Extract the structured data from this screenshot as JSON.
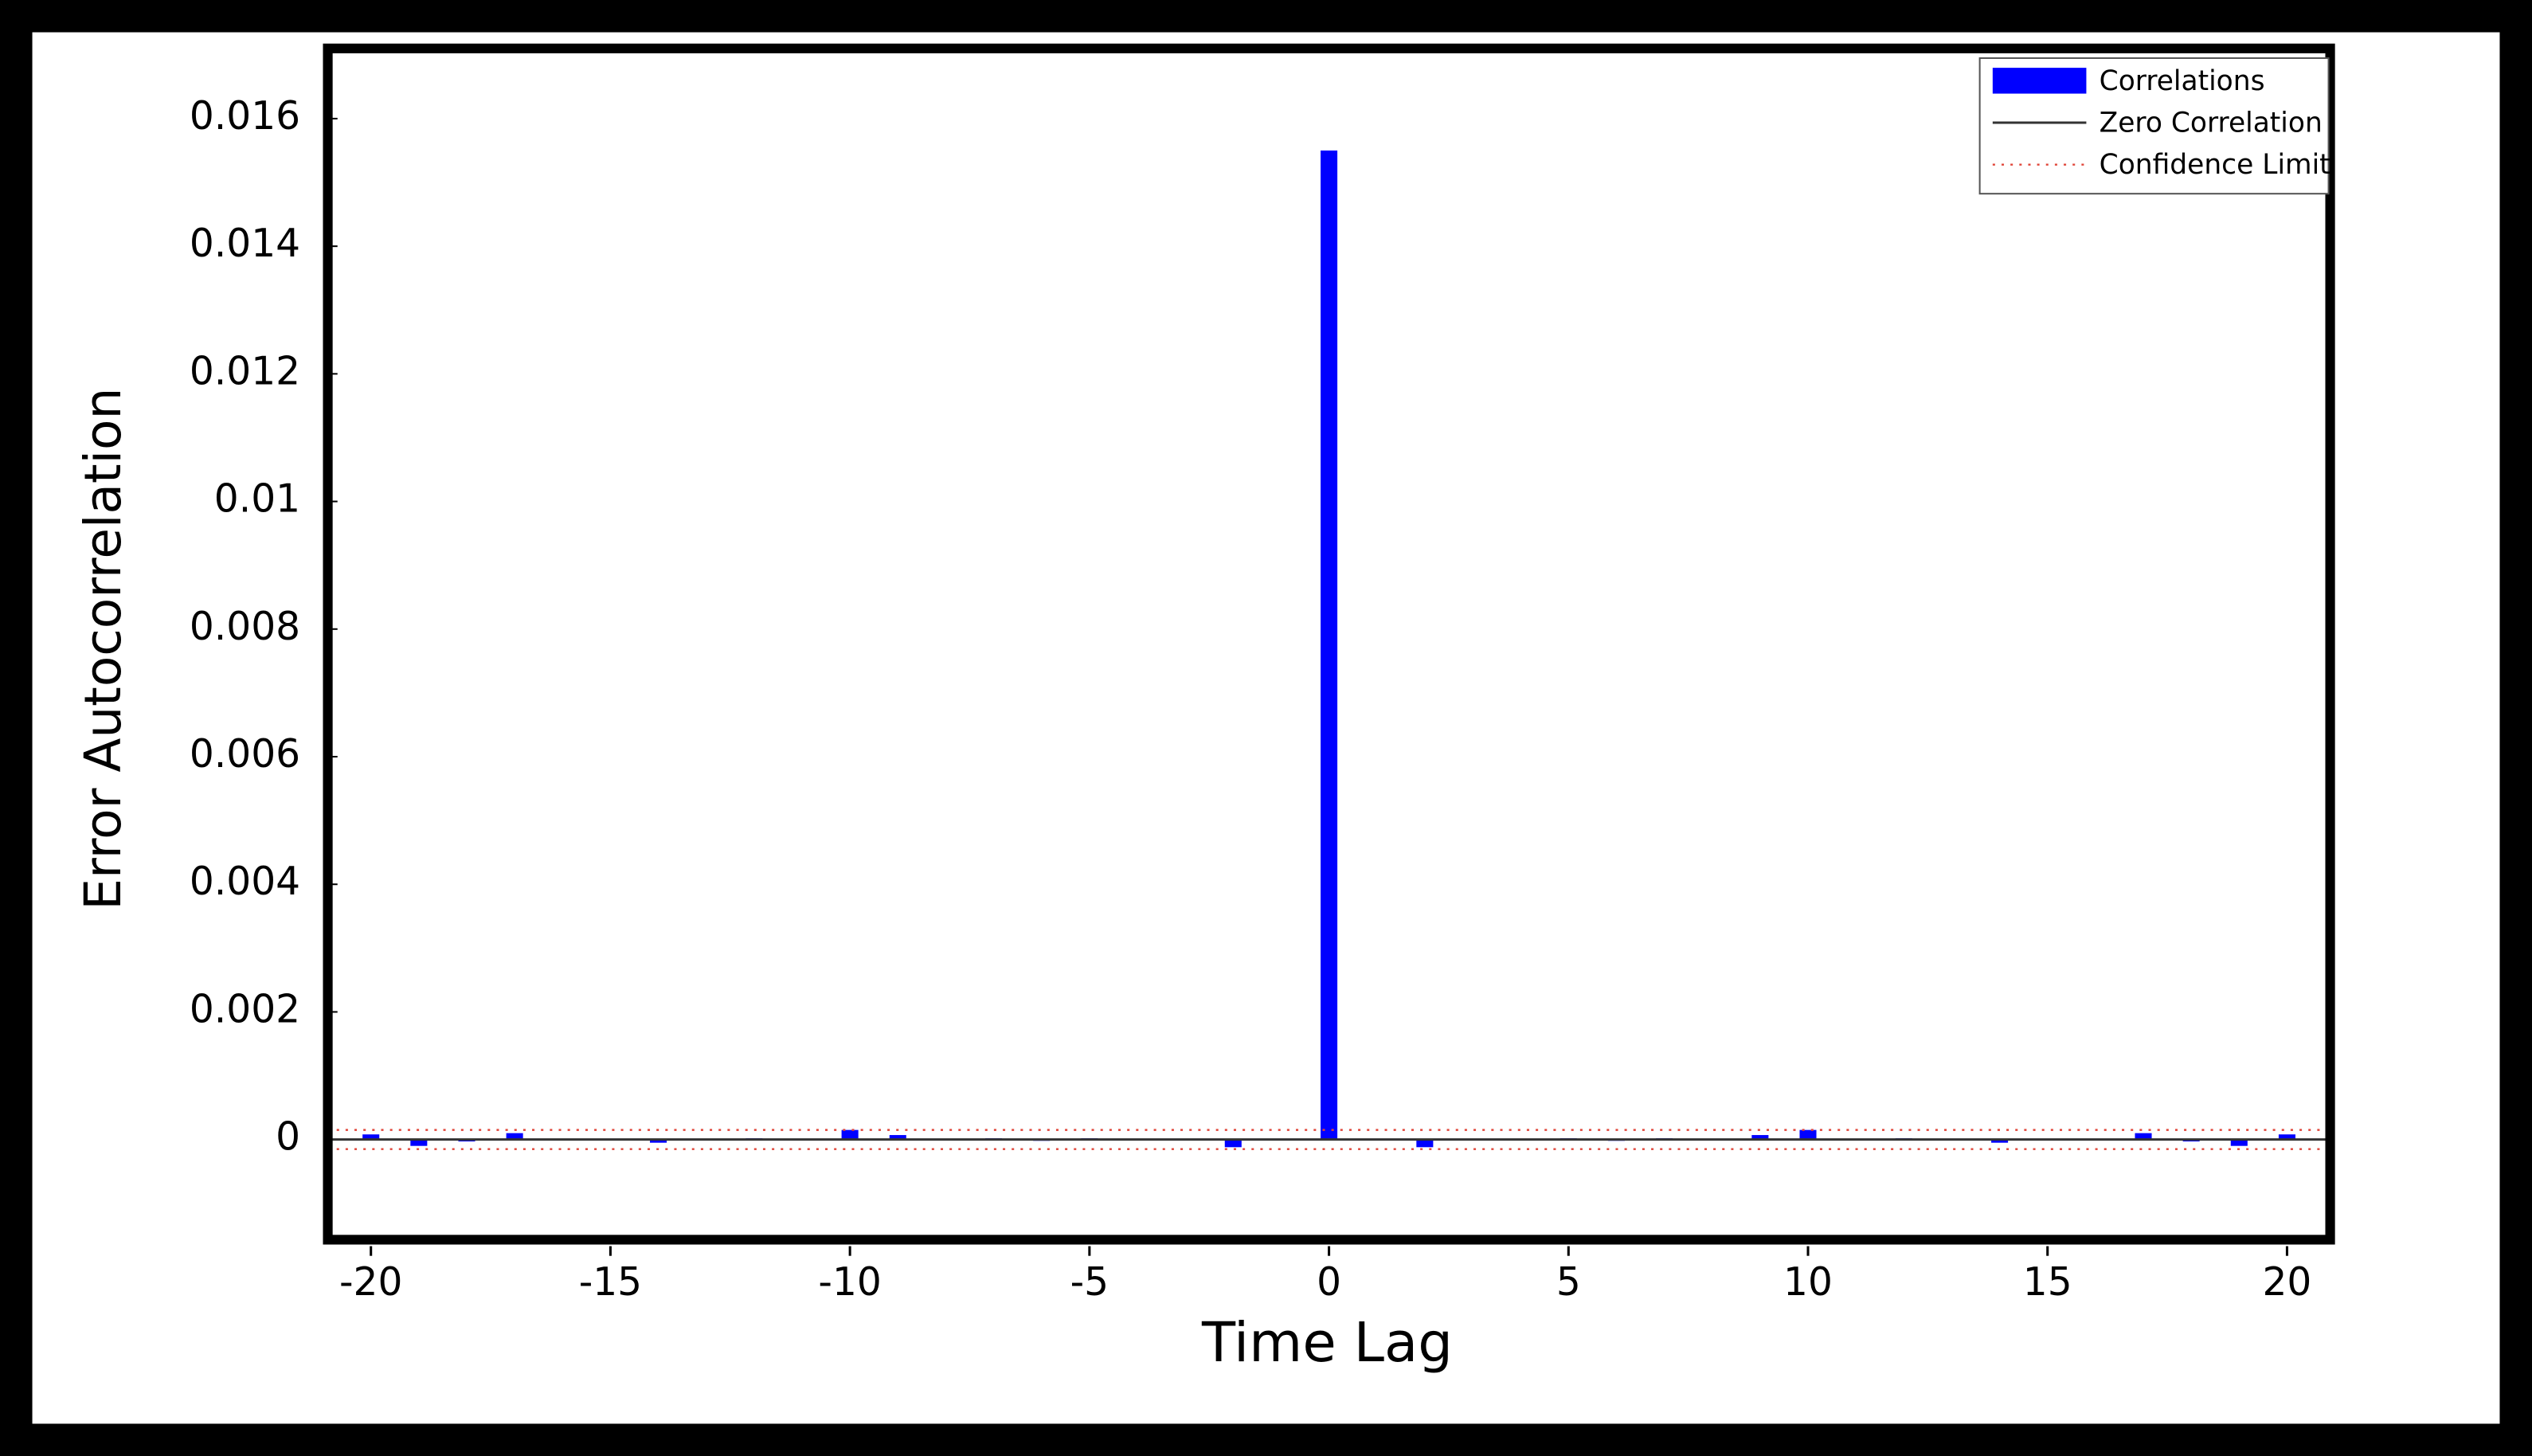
{
  "chart_data": {
    "type": "bar",
    "xlabel": "Time Lag",
    "ylabel": "Error Autocorrelation",
    "x": [
      -20,
      -19,
      -18,
      -17,
      -16,
      -15,
      -14,
      -13,
      -12,
      -11,
      -10,
      -9,
      -8,
      -7,
      -6,
      -5,
      -4,
      -3,
      -2,
      -1,
      0,
      1,
      2,
      3,
      4,
      5,
      6,
      7,
      8,
      9,
      10,
      11,
      12,
      13,
      14,
      15,
      16,
      17,
      18,
      19,
      20
    ],
    "series": [
      {
        "name": "Correlations",
        "color": "#0000ff",
        "values": [
          8e-05,
          -0.0001,
          -3e-05,
          0.0001,
          0,
          0,
          -5e-05,
          0,
          2e-05,
          0,
          0.00015,
          7e-05,
          0,
          2e-05,
          -2e-05,
          2e-05,
          0,
          1e-05,
          -0.00012,
          0,
          0.0155,
          0,
          -0.00012,
          1e-05,
          0,
          2e-05,
          -2e-05,
          2e-05,
          0,
          7e-05,
          0.00015,
          0,
          2e-05,
          0,
          -5e-05,
          0,
          0,
          0.0001,
          -3e-05,
          -0.0001,
          8e-05
        ]
      }
    ],
    "zero_line_name": "Zero Correlation",
    "confidence_name": "Confidence Limit",
    "confidence_limits": [
      -0.00015,
      0.00015
    ],
    "xlim": [
      -20.9,
      20.9
    ],
    "ylim": [
      -0.00157,
      0.0171
    ],
    "xticks": [
      -20,
      -15,
      -10,
      -5,
      0,
      5,
      10,
      15,
      20
    ],
    "yticks": [
      0,
      0.002,
      0.004,
      0.006,
      0.008,
      0.01,
      0.012,
      0.014,
      0.016
    ],
    "legend": "upper right",
    "grid": false
  }
}
